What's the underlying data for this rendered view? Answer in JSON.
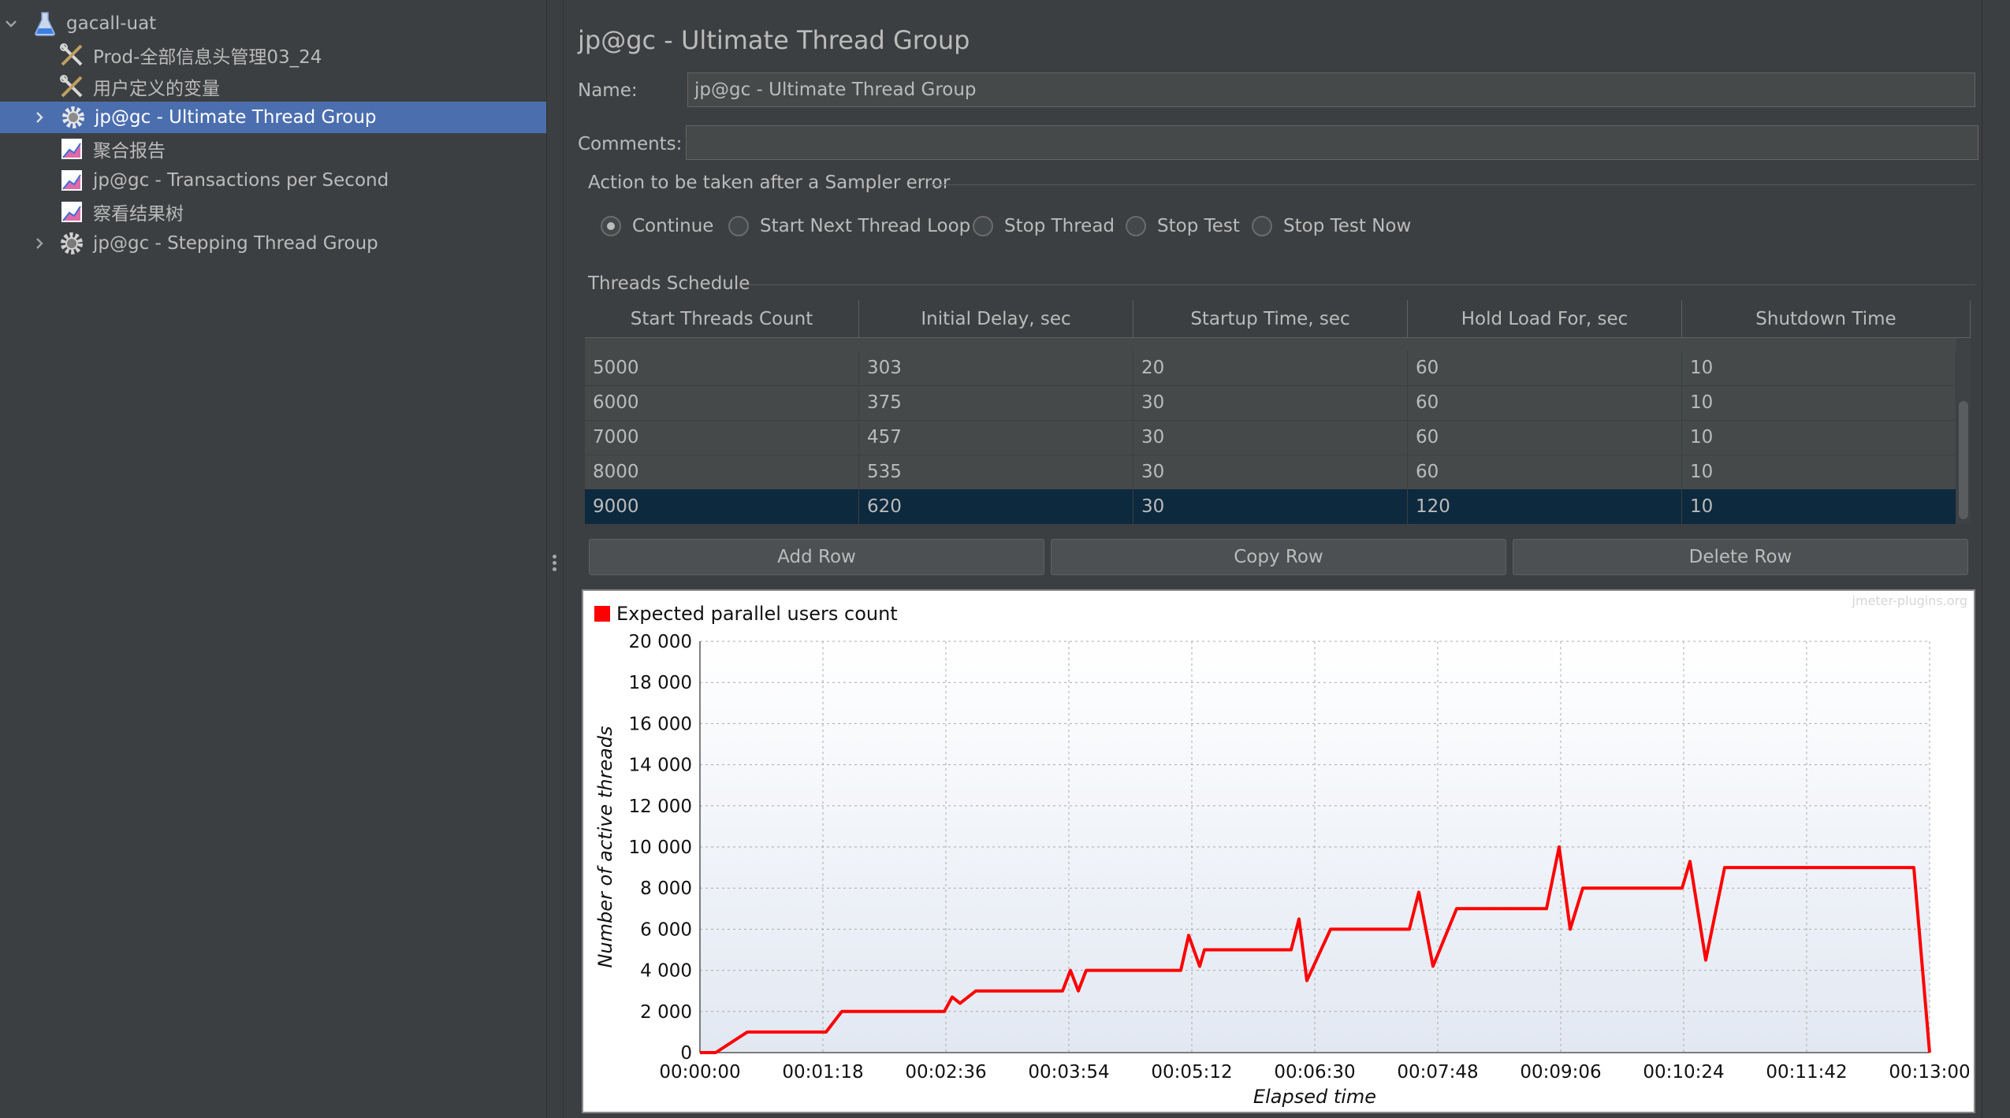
{
  "tree": {
    "items": [
      {
        "label": "gacall-uat",
        "icon": "test-plan-flask-icon",
        "expanded": true
      },
      {
        "label": "Prod-全部信息头管理03_24",
        "icon": "config-tools-icon"
      },
      {
        "label": "用户定义的变量",
        "icon": "config-tools-icon"
      },
      {
        "label": "jp@gc - Ultimate Thread Group",
        "icon": "thread-group-gear-icon",
        "selected": true
      },
      {
        "label": "聚合报告",
        "icon": "listener-graph-icon"
      },
      {
        "label": "jp@gc - Transactions per Second",
        "icon": "listener-graph-icon"
      },
      {
        "label": "察看结果树",
        "icon": "listener-graph-icon"
      },
      {
        "label": "jp@gc - Stepping Thread Group",
        "icon": "thread-group-gear-icon"
      }
    ]
  },
  "panel": {
    "title": "jp@gc - Ultimate Thread Group",
    "name_label": "Name:",
    "name_value": "jp@gc - Ultimate Thread Group",
    "comments_label": "Comments:",
    "comments_value": "",
    "error_section": "Action to be taken after a Sampler error",
    "error_options": [
      {
        "label": "Continue",
        "checked": true
      },
      {
        "label": "Start Next Thread Loop",
        "checked": false
      },
      {
        "label": "Stop Thread",
        "checked": false
      },
      {
        "label": "Stop Test",
        "checked": false
      },
      {
        "label": "Stop Test Now",
        "checked": false
      }
    ],
    "schedule_section": "Threads Schedule",
    "columns": [
      "Start Threads Count",
      "Initial Delay, sec",
      "Startup Time, sec",
      "Hold Load For, sec",
      "Shutdown Time"
    ],
    "rows": [
      [
        "5000",
        "303",
        "20",
        "60",
        "10"
      ],
      [
        "6000",
        "375",
        "30",
        "60",
        "10"
      ],
      [
        "7000",
        "457",
        "30",
        "60",
        "10"
      ],
      [
        "8000",
        "535",
        "30",
        "60",
        "10"
      ],
      [
        "9000",
        "620",
        "30",
        "120",
        "10"
      ]
    ],
    "selected_row": 4,
    "buttons": {
      "add": "Add Row",
      "copy": "Copy Row",
      "delete": "Delete Row"
    }
  },
  "chart_data": {
    "type": "line",
    "watermark": "jmeter-plugins.org",
    "legend": "Expected parallel users count",
    "legend_color": "#ff0000",
    "xlabel": "Elapsed time",
    "ylabel": "Number of active threads",
    "y_ticks": [
      "0",
      "2 000",
      "4 000",
      "6 000",
      "8 000",
      "10 000",
      "12 000",
      "14 000",
      "16 000",
      "18 000",
      "20 000"
    ],
    "x_ticks": [
      "00:00:00",
      "00:01:18",
      "00:02:36",
      "00:03:54",
      "00:05:12",
      "00:06:30",
      "00:07:48",
      "00:09:06",
      "00:10:24",
      "00:11:42",
      "00:13:00"
    ],
    "xlim_sec": [
      0,
      780
    ],
    "ylim": [
      0,
      20000
    ],
    "grid": true,
    "series": [
      {
        "color": "#ff0000",
        "points_sec": [
          [
            0,
            0
          ],
          [
            10,
            0
          ],
          [
            30,
            1000
          ],
          [
            80,
            1000
          ],
          [
            90,
            2000
          ],
          [
            155,
            2000
          ],
          [
            160,
            2700
          ],
          [
            165,
            2400
          ],
          [
            175,
            3000
          ],
          [
            230,
            3000
          ],
          [
            235,
            4000
          ],
          [
            240,
            3000
          ],
          [
            245,
            4000
          ],
          [
            305,
            4000
          ],
          [
            310,
            5700
          ],
          [
            317,
            4200
          ],
          [
            320,
            5000
          ],
          [
            375,
            5000
          ],
          [
            380,
            6500
          ],
          [
            385,
            3500
          ],
          [
            400,
            6000
          ],
          [
            450,
            6000
          ],
          [
            456,
            7800
          ],
          [
            465,
            4200
          ],
          [
            480,
            7000
          ],
          [
            537,
            7000
          ],
          [
            545,
            10000
          ],
          [
            552,
            6000
          ],
          [
            560,
            8000
          ],
          [
            623,
            8000
          ],
          [
            628,
            9300
          ],
          [
            638,
            4500
          ],
          [
            650,
            9000
          ],
          [
            770,
            9000
          ],
          [
            780,
            0
          ]
        ]
      }
    ]
  }
}
